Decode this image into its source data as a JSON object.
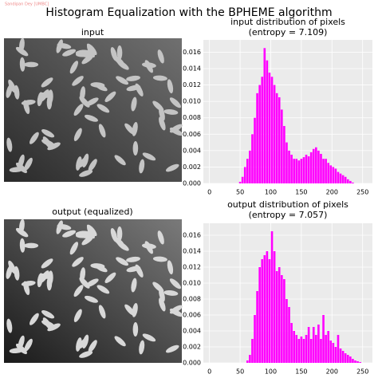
{
  "title": "Histogram Equalization with the BPHEME algorithm",
  "watermark": "Sandipan Dey [UMBC]",
  "images": [
    {
      "title": "input"
    },
    {
      "title": "output (equalized)"
    }
  ],
  "chart_data": [
    {
      "type": "bar",
      "title": "input distribution of pixels",
      "subtitle": "(entropy = 7.109)",
      "color": "#ff00ff",
      "grid": true,
      "x": [
        50,
        54,
        58,
        62,
        66,
        70,
        74,
        78,
        82,
        86,
        90,
        94,
        98,
        102,
        106,
        110,
        114,
        118,
        122,
        126,
        130,
        134,
        138,
        142,
        146,
        150,
        154,
        158,
        162,
        166,
        170,
        174,
        178,
        182,
        186,
        190,
        194,
        198,
        202,
        206,
        210,
        214,
        218,
        222,
        226,
        230,
        234
      ],
      "values": [
        0.0002,
        0.0008,
        0.002,
        0.003,
        0.004,
        0.006,
        0.008,
        0.011,
        0.012,
        0.013,
        0.0165,
        0.015,
        0.0135,
        0.013,
        0.012,
        0.011,
        0.0105,
        0.009,
        0.007,
        0.005,
        0.004,
        0.0035,
        0.003,
        0.003,
        0.0028,
        0.003,
        0.0032,
        0.0035,
        0.0033,
        0.0038,
        0.0042,
        0.0044,
        0.004,
        0.0036,
        0.003,
        0.003,
        0.0025,
        0.0022,
        0.002,
        0.0018,
        0.0014,
        0.0012,
        0.001,
        0.0008,
        0.0005,
        0.0003,
        0.0001
      ],
      "xlim": [
        -10,
        266
      ],
      "xticks": [
        0,
        50,
        100,
        150,
        200,
        250
      ],
      "ylim": [
        0,
        0.0175
      ],
      "yticks": [
        {
          "value": 0,
          "label": "0.000"
        },
        {
          "value": 0.002,
          "label": "0.002"
        },
        {
          "value": 0.004,
          "label": "0.004"
        },
        {
          "value": 0.006,
          "label": "0.006"
        },
        {
          "value": 0.008,
          "label": "0.008"
        },
        {
          "value": 0.01,
          "label": "0.010"
        },
        {
          "value": 0.012,
          "label": "0.012"
        },
        {
          "value": 0.014,
          "label": "0.014"
        },
        {
          "value": 0.016,
          "label": "0.016"
        }
      ]
    },
    {
      "type": "bar",
      "title": "output distribution of pixels",
      "subtitle": "(entropy = 7.057)",
      "color": "#ff00ff",
      "grid": true,
      "x": [
        62,
        66,
        70,
        74,
        78,
        82,
        86,
        90,
        94,
        98,
        102,
        106,
        110,
        114,
        118,
        122,
        126,
        130,
        134,
        138,
        142,
        146,
        150,
        154,
        158,
        162,
        166,
        170,
        174,
        178,
        182,
        186,
        190,
        194,
        198,
        202,
        206,
        210,
        214,
        218,
        222,
        226,
        230,
        234,
        238,
        242,
        246
      ],
      "values": [
        0.0003,
        0.001,
        0.003,
        0.006,
        0.009,
        0.012,
        0.013,
        0.0135,
        0.014,
        0.013,
        0.0165,
        0.014,
        0.0115,
        0.012,
        0.011,
        0.0105,
        0.008,
        0.007,
        0.005,
        0.004,
        0.0035,
        0.003,
        0.0033,
        0.003,
        0.0035,
        0.0045,
        0.003,
        0.0045,
        0.0035,
        0.0048,
        0.003,
        0.006,
        0.0035,
        0.004,
        0.0028,
        0.0025,
        0.002,
        0.0035,
        0.0018,
        0.0015,
        0.0012,
        0.001,
        0.0008,
        0.0005,
        0.0003,
        0.0002,
        0.0001
      ],
      "xlim": [
        -10,
        266
      ],
      "xticks": [
        0,
        50,
        100,
        150,
        200,
        250
      ],
      "ylim": [
        0,
        0.0175
      ],
      "yticks": [
        {
          "value": 0,
          "label": "0.000"
        },
        {
          "value": 0.002,
          "label": "0.002"
        },
        {
          "value": 0.004,
          "label": "0.004"
        },
        {
          "value": 0.006,
          "label": "0.006"
        },
        {
          "value": 0.008,
          "label": "0.008"
        },
        {
          "value": 0.01,
          "label": "0.010"
        },
        {
          "value": 0.012,
          "label": "0.012"
        },
        {
          "value": 0.014,
          "label": "0.014"
        },
        {
          "value": 0.016,
          "label": "0.016"
        }
      ]
    }
  ]
}
